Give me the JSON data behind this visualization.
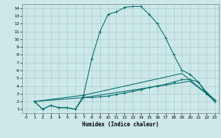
{
  "xlabel": "Humidex (Indice chaleur)",
  "xlim": [
    -0.5,
    23.5
  ],
  "ylim": [
    0.5,
    14.5
  ],
  "xticks": [
    0,
    1,
    2,
    3,
    4,
    5,
    6,
    7,
    8,
    9,
    10,
    11,
    12,
    13,
    14,
    15,
    16,
    17,
    18,
    19,
    20,
    21,
    22,
    23
  ],
  "yticks": [
    1,
    2,
    3,
    4,
    5,
    6,
    7,
    8,
    9,
    10,
    11,
    12,
    13,
    14
  ],
  "bg_color": "#cce8e8",
  "grid_color": "#aacccc",
  "line_color": "#006b6b",
  "line1_x": [
    1,
    2,
    3,
    4,
    5,
    6,
    7,
    8,
    9,
    10,
    11,
    12,
    13,
    14,
    15,
    16,
    17,
    18,
    19,
    20,
    21,
    22,
    23
  ],
  "line1_y": [
    2,
    1,
    1.5,
    1.2,
    1.2,
    1,
    2.8,
    7.5,
    11,
    13.2,
    13.5,
    14.1,
    14.2,
    14.2,
    13.2,
    12,
    10.2,
    8,
    6,
    5.5,
    4.5,
    3,
    2
  ],
  "line2_x": [
    1,
    2,
    3,
    4,
    5,
    6,
    7,
    8,
    9,
    10,
    11,
    12,
    13,
    14,
    15,
    16,
    17,
    18,
    19,
    20,
    21,
    22,
    23
  ],
  "line2_y": [
    2,
    1,
    1.5,
    1.2,
    1.2,
    1,
    2.5,
    2.5,
    2.6,
    2.7,
    2.9,
    3.1,
    3.3,
    3.5,
    3.8,
    4.0,
    4.2,
    4.5,
    4.8,
    4.8,
    4.5,
    3.2,
    2.2
  ],
  "line3_x": [
    1,
    7,
    19,
    23
  ],
  "line3_y": [
    2,
    2.8,
    5.6,
    2.2
  ],
  "line4_x": [
    1,
    7,
    20,
    23
  ],
  "line4_y": [
    2,
    2.5,
    4.6,
    2.2
  ]
}
